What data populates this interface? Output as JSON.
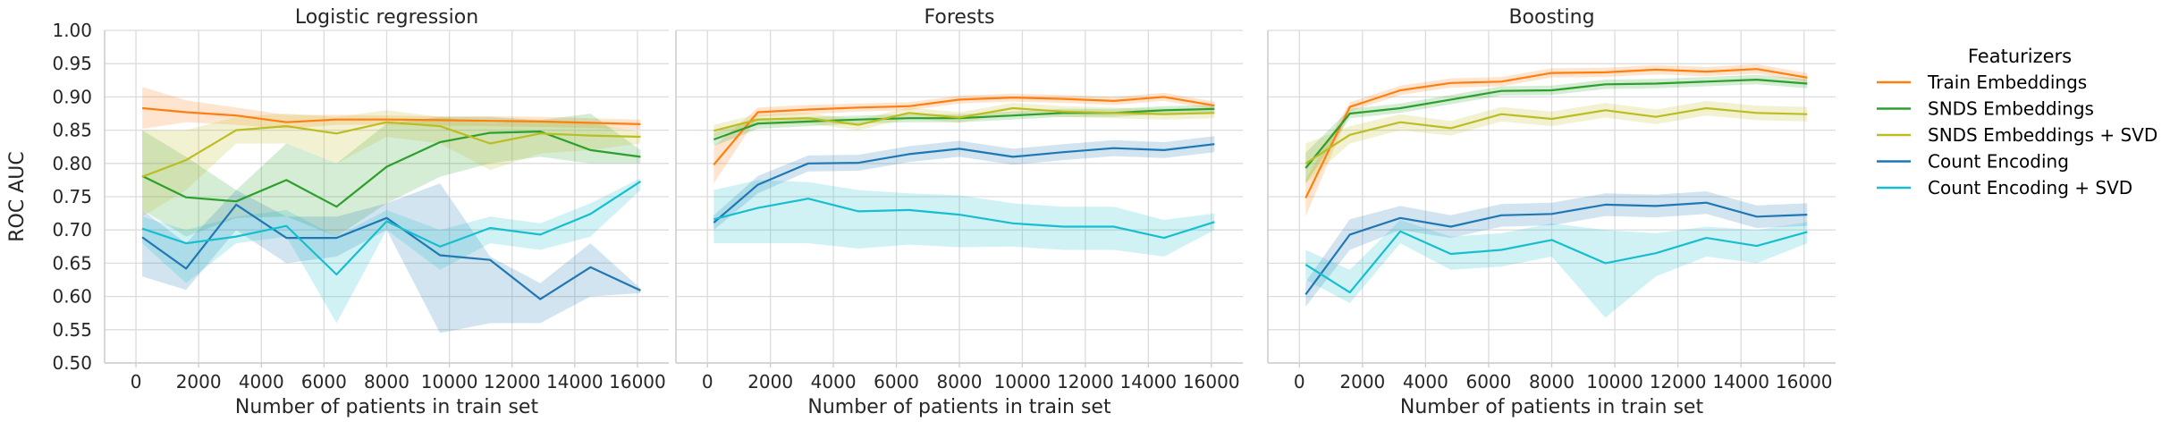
{
  "chart_data": {
    "type": "line",
    "ylabel": "ROC AUC",
    "xlabel": "Number of patients in train set",
    "ylim": [
      0.5,
      1.0
    ],
    "yticks": [
      "0.50",
      "0.55",
      "0.60",
      "0.65",
      "0.70",
      "0.75",
      "0.80",
      "0.85",
      "0.90",
      "0.95",
      "1.00"
    ],
    "xlim": [
      -1000,
      17000
    ],
    "xticks": [
      "0",
      "2000",
      "4000",
      "6000",
      "8000",
      "10000",
      "12000",
      "14000",
      "16000"
    ],
    "grid": true,
    "legend": {
      "title": "Featurizers",
      "placement": "right",
      "entries": [
        {
          "name": "Train Embeddings",
          "color": "#ff7f0e"
        },
        {
          "name": "SNDS Embeddings",
          "color": "#2ca02c"
        },
        {
          "name": "SNDS Embeddings + SVD",
          "color": "#bcbd22"
        },
        {
          "name": "Count Encoding",
          "color": "#1f77b4"
        },
        {
          "name": "Count Encoding + SVD",
          "color": "#17becf"
        }
      ]
    },
    "x": [
      200,
      1600,
      3200,
      4800,
      6400,
      8000,
      9700,
      11300,
      12900,
      14500,
      16100
    ],
    "panels": [
      {
        "title": "Logistic regression",
        "series": [
          {
            "name": "Train Embeddings",
            "values": [
              0.883,
              0.877,
              0.872,
              0.862,
              0.866,
              0.866,
              0.865,
              0.864,
              0.863,
              0.861,
              0.859
            ],
            "lower": [
              0.852,
              0.862,
              0.858,
              0.852,
              0.858,
              0.858,
              0.857,
              0.856,
              0.855,
              0.853,
              0.851
            ],
            "upper": [
              0.915,
              0.895,
              0.884,
              0.873,
              0.873,
              0.872,
              0.871,
              0.871,
              0.87,
              0.868,
              0.866
            ]
          },
          {
            "name": "SNDS Embeddings",
            "values": [
              0.781,
              0.749,
              0.743,
              0.775,
              0.735,
              0.795,
              0.832,
              0.846,
              0.848,
              0.82,
              0.81
            ],
            "lower": [
              0.73,
              0.69,
              0.718,
              0.72,
              0.69,
              0.74,
              0.78,
              0.8,
              0.81,
              0.8,
              0.8
            ],
            "upper": [
              0.85,
              0.81,
              0.76,
              0.83,
              0.8,
              0.86,
              0.87,
              0.87,
              0.865,
              0.875,
              0.82
            ]
          },
          {
            "name": "SNDS Embeddings + SVD",
            "values": [
              0.78,
              0.805,
              0.85,
              0.856,
              0.845,
              0.862,
              0.856,
              0.83,
              0.845,
              0.842,
              0.84
            ],
            "lower": [
              0.72,
              0.76,
              0.83,
              0.83,
              0.8,
              0.84,
              0.83,
              0.79,
              0.815,
              0.82,
              0.83
            ],
            "upper": [
              0.85,
              0.85,
              0.87,
              0.875,
              0.87,
              0.88,
              0.87,
              0.86,
              0.865,
              0.86,
              0.848
            ]
          },
          {
            "name": "Count Encoding",
            "values": [
              0.689,
              0.642,
              0.738,
              0.688,
              0.688,
              0.718,
              0.662,
              0.655,
              0.596,
              0.644,
              0.609
            ],
            "lower": [
              0.63,
              0.61,
              0.7,
              0.65,
              0.66,
              0.7,
              0.545,
              0.56,
              0.56,
              0.6,
              0.605
            ],
            "upper": [
              0.73,
              0.68,
              0.76,
              0.72,
              0.72,
              0.74,
              0.77,
              0.66,
              0.62,
              0.68,
              0.612
            ]
          },
          {
            "name": "Count Encoding + SVD",
            "values": [
              0.702,
              0.68,
              0.69,
              0.706,
              0.633,
              0.713,
              0.675,
              0.703,
              0.693,
              0.724,
              0.773
            ],
            "lower": [
              0.68,
              0.62,
              0.68,
              0.69,
              0.56,
              0.7,
              0.64,
              0.68,
              0.67,
              0.69,
              0.76
            ],
            "upper": [
              0.72,
              0.7,
              0.72,
              0.73,
              0.69,
              0.73,
              0.7,
              0.72,
              0.71,
              0.74,
              0.778
            ]
          }
        ]
      },
      {
        "title": "Forests",
        "series": [
          {
            "name": "Train Embeddings",
            "values": [
              0.798,
              0.877,
              0.881,
              0.884,
              0.886,
              0.896,
              0.899,
              0.897,
              0.894,
              0.9,
              0.887
            ],
            "lower": [
              0.77,
              0.87,
              0.874,
              0.878,
              0.88,
              0.89,
              0.893,
              0.891,
              0.888,
              0.894,
              0.881
            ],
            "upper": [
              0.825,
              0.884,
              0.888,
              0.89,
              0.892,
              0.902,
              0.905,
              0.903,
              0.9,
              0.906,
              0.893
            ]
          },
          {
            "name": "SNDS Embeddings",
            "values": [
              0.836,
              0.86,
              0.863,
              0.866,
              0.868,
              0.868,
              0.872,
              0.876,
              0.876,
              0.88,
              0.882
            ],
            "lower": [
              0.826,
              0.852,
              0.856,
              0.86,
              0.862,
              0.862,
              0.866,
              0.87,
              0.87,
              0.874,
              0.876
            ],
            "upper": [
              0.846,
              0.868,
              0.87,
              0.872,
              0.874,
              0.874,
              0.878,
              0.882,
              0.882,
              0.886,
              0.888
            ]
          },
          {
            "name": "SNDS Embeddings + SVD",
            "values": [
              0.849,
              0.866,
              0.868,
              0.858,
              0.876,
              0.869,
              0.883,
              0.878,
              0.876,
              0.874,
              0.876
            ],
            "lower": [
              0.84,
              0.858,
              0.86,
              0.85,
              0.868,
              0.861,
              0.875,
              0.87,
              0.868,
              0.866,
              0.868
            ],
            "upper": [
              0.858,
              0.874,
              0.876,
              0.866,
              0.884,
              0.877,
              0.891,
              0.886,
              0.884,
              0.882,
              0.884
            ]
          },
          {
            "name": "Count Encoding",
            "values": [
              0.711,
              0.768,
              0.8,
              0.801,
              0.814,
              0.822,
              0.81,
              0.817,
              0.823,
              0.82,
              0.829
            ],
            "lower": [
              0.7,
              0.755,
              0.788,
              0.789,
              0.802,
              0.81,
              0.798,
              0.805,
              0.811,
              0.808,
              0.817
            ],
            "upper": [
              0.722,
              0.781,
              0.812,
              0.813,
              0.826,
              0.834,
              0.822,
              0.829,
              0.835,
              0.832,
              0.841
            ]
          },
          {
            "name": "Count Encoding + SVD",
            "values": [
              0.716,
              0.733,
              0.747,
              0.728,
              0.73,
              0.723,
              0.71,
              0.705,
              0.705,
              0.688,
              0.712
            ],
            "lower": [
              0.68,
              0.68,
              0.68,
              0.672,
              0.678,
              0.674,
              0.675,
              0.67,
              0.67,
              0.66,
              0.7
            ],
            "upper": [
              0.76,
              0.775,
              0.772,
              0.76,
              0.755,
              0.752,
              0.74,
              0.735,
              0.735,
              0.715,
              0.725
            ]
          }
        ]
      },
      {
        "title": "Boosting",
        "series": [
          {
            "name": "Train Embeddings",
            "values": [
              0.748,
              0.885,
              0.91,
              0.921,
              0.923,
              0.936,
              0.937,
              0.941,
              0.938,
              0.942,
              0.929
            ],
            "lower": [
              0.72,
              0.878,
              0.903,
              0.914,
              0.916,
              0.929,
              0.93,
              0.934,
              0.931,
              0.935,
              0.922
            ],
            "upper": [
              0.776,
              0.892,
              0.917,
              0.928,
              0.93,
              0.943,
              0.944,
              0.948,
              0.945,
              0.949,
              0.936
            ]
          },
          {
            "name": "SNDS Embeddings",
            "values": [
              0.793,
              0.875,
              0.883,
              0.896,
              0.909,
              0.91,
              0.919,
              0.92,
              0.923,
              0.926,
              0.92
            ],
            "lower": [
              0.77,
              0.868,
              0.876,
              0.889,
              0.902,
              0.903,
              0.912,
              0.913,
              0.916,
              0.919,
              0.913
            ],
            "upper": [
              0.816,
              0.882,
              0.89,
              0.903,
              0.916,
              0.917,
              0.926,
              0.927,
              0.93,
              0.933,
              0.927
            ]
          },
          {
            "name": "SNDS Embeddings + SVD",
            "values": [
              0.8,
              0.843,
              0.862,
              0.853,
              0.874,
              0.867,
              0.88,
              0.87,
              0.883,
              0.876,
              0.874
            ],
            "lower": [
              0.77,
              0.83,
              0.85,
              0.842,
              0.863,
              0.856,
              0.869,
              0.859,
              0.872,
              0.865,
              0.863
            ],
            "upper": [
              0.83,
              0.856,
              0.874,
              0.864,
              0.885,
              0.878,
              0.891,
              0.881,
              0.894,
              0.887,
              0.885
            ]
          },
          {
            "name": "Count Encoding",
            "values": [
              0.603,
              0.693,
              0.718,
              0.705,
              0.722,
              0.724,
              0.738,
              0.736,
              0.741,
              0.72,
              0.723
            ],
            "lower": [
              0.585,
              0.67,
              0.7,
              0.688,
              0.705,
              0.707,
              0.721,
              0.719,
              0.724,
              0.703,
              0.706
            ],
            "upper": [
              0.622,
              0.716,
              0.736,
              0.722,
              0.739,
              0.741,
              0.755,
              0.753,
              0.758,
              0.737,
              0.74
            ]
          },
          {
            "name": "Count Encoding + SVD",
            "values": [
              0.648,
              0.606,
              0.698,
              0.664,
              0.67,
              0.685,
              0.65,
              0.665,
              0.688,
              0.676,
              0.697
            ],
            "lower": [
              0.625,
              0.59,
              0.68,
              0.64,
              0.645,
              0.66,
              0.568,
              0.63,
              0.66,
              0.65,
              0.68
            ],
            "upper": [
              0.67,
              0.64,
              0.715,
              0.69,
              0.695,
              0.71,
              0.7,
              0.695,
              0.705,
              0.7,
              0.712
            ]
          }
        ]
      }
    ]
  }
}
